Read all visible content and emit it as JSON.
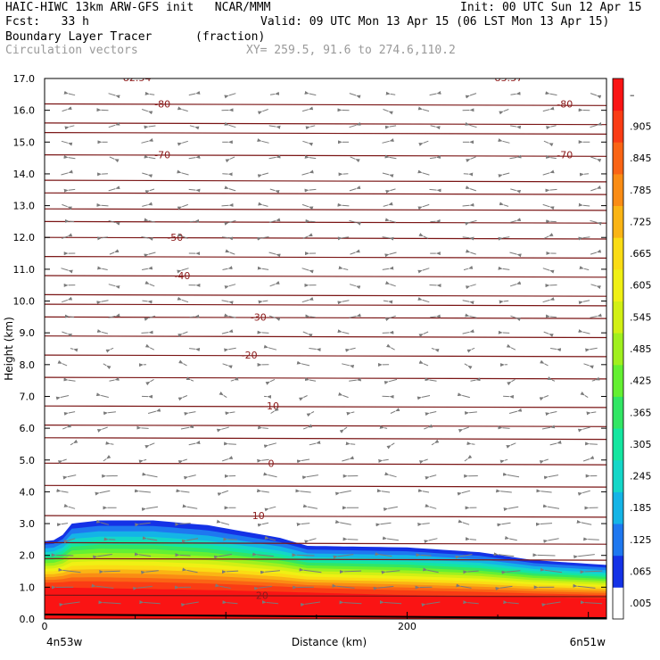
{
  "header": {
    "line1_left": "HAIC-HIWC 13km ARW-GFS init   NCAR/MMM",
    "line1_right": "Init: 00 UTC Sun 12 Apr 15",
    "line2_left": "Fcst:   33 h",
    "line2_right": "Valid: 09 UTC Mon 13 Apr 15 (06 LST Mon 13 Apr 15)",
    "field": "Boundary Layer Tracer",
    "units": "(fraction)",
    "vectors": "Circulation vectors",
    "xy": "XY= 259.5, 91.6 to 274.6,110.2"
  },
  "chart_data": {
    "type": "heatmap",
    "xlabel": "Distance (km)",
    "ylabel": "Height (km)",
    "xlim": [
      0,
      310
    ],
    "ylim": [
      0,
      17
    ],
    "x_ticks": [
      {
        "value": 0,
        "label": "0"
      },
      {
        "value": 200,
        "label": "200"
      }
    ],
    "x_end_labels": {
      "left": "4n53w",
      "right": "6n51w"
    },
    "y_ticks": [
      "0.0",
      "1.0",
      "2.0",
      "3.0",
      "4.0",
      "5.0",
      "6.0",
      "7.0",
      "8.0",
      "9.0",
      "10.0",
      "11.0",
      "12.0",
      "13.0",
      "14.0",
      "15.0",
      "16.0",
      "17.0"
    ],
    "colorbar": {
      "labels": [
        ".005",
        ".065",
        ".125",
        ".185",
        ".245",
        ".305",
        ".365",
        ".425",
        ".485",
        ".545",
        ".605",
        ".665",
        ".725",
        ".785",
        ".845",
        ".905",
        "–"
      ],
      "colors": [
        "#ffffff",
        "#1432e6",
        "#1e78f0",
        "#14b4e6",
        "#14d7c8",
        "#14e6a0",
        "#32e664",
        "#64f032",
        "#a0f01e",
        "#d2f014",
        "#f0f014",
        "#fadc14",
        "#fab414",
        "#fa8c14",
        "#fa6414",
        "#fa3c14",
        "#fa1414"
      ]
    },
    "temperature_contours": [
      {
        "value": 20,
        "height": 0.75,
        "label": "20"
      },
      {
        "value": 10,
        "height": 3.25,
        "label": "10"
      },
      {
        "value": 0,
        "height": 4.9,
        "label": "0"
      },
      {
        "value": -10,
        "height": 6.7,
        "label": "-10"
      },
      {
        "value": -20,
        "height": 8.3,
        "label": "-20"
      },
      {
        "value": -30,
        "height": 9.5,
        "label": "-30"
      },
      {
        "value": -40,
        "height": 10.8,
        "label": "-40"
      },
      {
        "value": -50,
        "height": 12.0,
        "label": "-50"
      },
      {
        "value": -70,
        "height": 14.6,
        "label": "-70"
      },
      {
        "value": -80,
        "height": 16.2,
        "label": "-80"
      }
    ],
    "contour_heights_unlabeled": [
      1.9,
      2.4,
      4.2,
      5.7,
      6.1,
      7.6,
      8.9,
      9.9,
      10.2,
      11.4,
      12.5,
      12.9,
      13.4,
      13.8,
      15.3,
      15.6
    ],
    "top_labels": [
      "-82.54",
      "-83.37"
    ],
    "tracer_top_profile": [
      {
        "x": 0,
        "h": 2.45
      },
      {
        "x": 8,
        "h": 2.5
      },
      {
        "x": 15,
        "h": 3.0
      },
      {
        "x": 30,
        "h": 3.1
      },
      {
        "x": 60,
        "h": 3.1
      },
      {
        "x": 90,
        "h": 2.95
      },
      {
        "x": 115,
        "h": 2.7
      },
      {
        "x": 130,
        "h": 2.55
      },
      {
        "x": 145,
        "h": 2.3
      },
      {
        "x": 200,
        "h": 2.25
      },
      {
        "x": 240,
        "h": 2.1
      },
      {
        "x": 270,
        "h": 1.85
      },
      {
        "x": 310,
        "h": 1.7
      }
    ],
    "tracer_red_top": [
      {
        "x": 0,
        "h": 1.0
      },
      {
        "x": 100,
        "h": 0.9
      },
      {
        "x": 200,
        "h": 0.75
      },
      {
        "x": 310,
        "h": 0.65
      }
    ],
    "vector_columns": 14
  }
}
